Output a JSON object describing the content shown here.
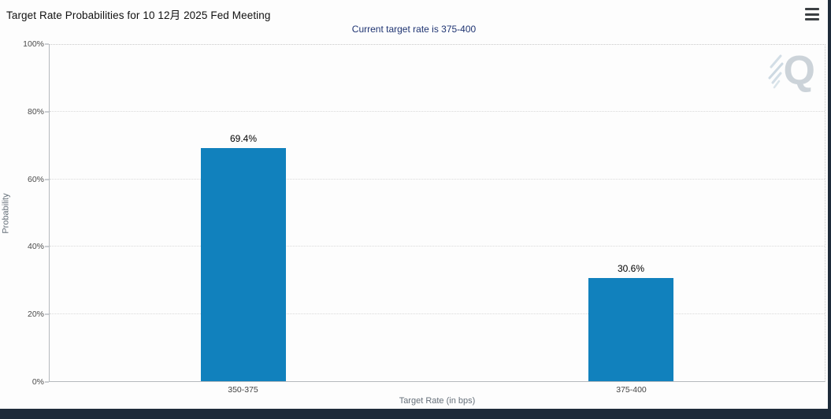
{
  "header": {
    "title": "Target Rate Probabilities for 10 12月 2025 Fed Meeting",
    "subtitle": "Current target rate is 375-400"
  },
  "watermark": {
    "letter": "Q"
  },
  "chart_data": {
    "type": "bar",
    "title": "Target Rate Probabilities for 10 12月 2025 Fed Meeting",
    "subtitle": "Current target rate is 375-400",
    "categories": [
      "350-375",
      "375-400"
    ],
    "values": [
      69.4,
      30.6
    ],
    "value_labels": [
      "69.4%",
      "30.6%"
    ],
    "xlabel": "Target Rate (in bps)",
    "ylabel": "Probability",
    "ylim": [
      0,
      100
    ],
    "yticks": [
      0,
      20,
      40,
      60,
      80,
      100
    ],
    "ytick_labels": [
      "0%",
      "20%",
      "40%",
      "60%",
      "80%",
      "100%"
    ],
    "grid": "horizontal-dotted",
    "legend": "none",
    "bar_color": "#1181bd",
    "value_label_color": "#000000",
    "subtitle_color": "#1f3472",
    "page_background": "#1e2b3a",
    "panel_background": "#fdfdfd"
  }
}
